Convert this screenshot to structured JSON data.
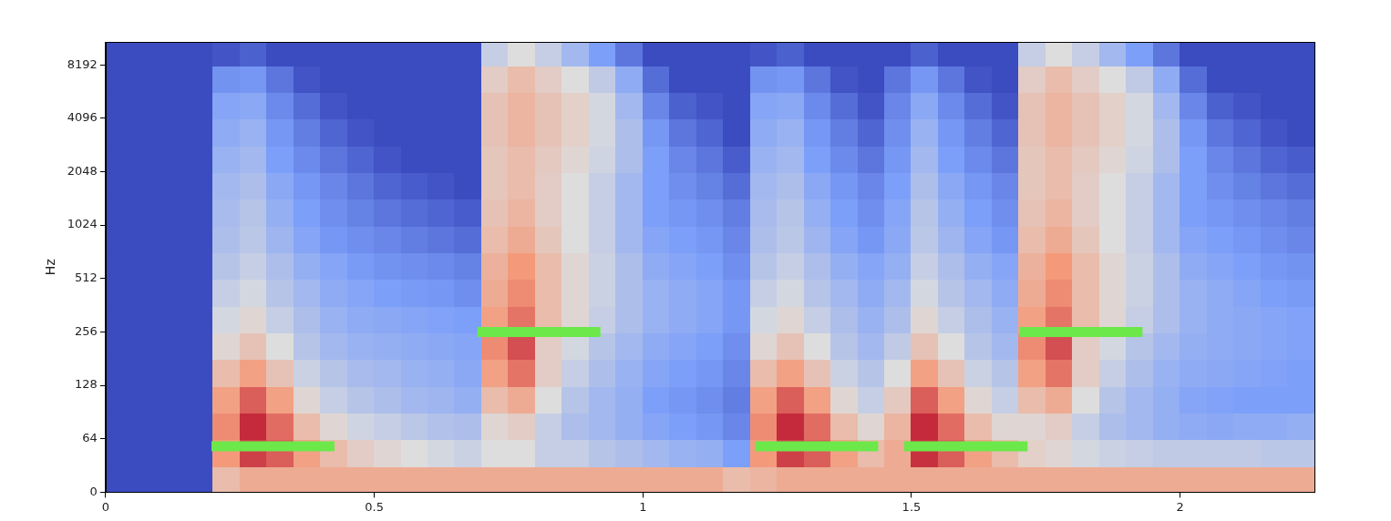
{
  "chart_data": {
    "type": "heatmap",
    "y_label": "Hz",
    "log": "y",
    "grid": false,
    "xlim": [
      0,
      2.25
    ],
    "xticks": [
      0,
      0.5,
      1,
      1.5,
      2
    ],
    "ylim": [
      0,
      11025
    ],
    "yticks": [
      0,
      64,
      128,
      256,
      512,
      1024,
      2048,
      4096,
      8192
    ],
    "cells": {
      "x_edges": [
        0,
        0.05,
        0.1,
        0.15,
        0.2,
        0.25,
        0.3,
        0.35,
        0.4,
        0.45,
        0.5,
        0.55,
        0.6,
        0.65,
        0.7,
        0.75,
        0.8,
        0.85,
        0.9,
        0.95,
        1,
        1.05,
        1.1,
        1.15,
        1.2,
        1.25,
        1.3,
        1.35,
        1.4,
        1.45,
        1.5,
        1.55,
        1.6,
        1.65,
        1.7,
        1.75,
        1.8,
        1.85,
        1.9,
        1.95,
        2,
        2.05,
        2.1,
        2.15,
        2.2,
        2.25
      ],
      "y_edges": [
        0,
        32,
        64,
        90.5,
        128,
        181,
        256,
        362,
        512,
        724,
        1024,
        1448,
        2048,
        2896,
        4096,
        5793,
        8192,
        11025
      ],
      "value_range": [
        -80,
        0
      ],
      "values": [
        [
          -80,
          -80,
          -80,
          -80,
          -80,
          -80,
          -80,
          -80,
          -80,
          -80,
          -80,
          -80,
          -80,
          -80,
          -80,
          -80,
          -80
        ],
        [
          -80,
          -80,
          -80,
          -80,
          -80,
          -80,
          -80,
          -80,
          -80,
          -80,
          -80,
          -80,
          -80,
          -80,
          -80,
          -80,
          -80
        ],
        [
          -80,
          -80,
          -80,
          -80,
          -80,
          -80,
          -80,
          -80,
          -80,
          -80,
          -80,
          -80,
          -80,
          -80,
          -80,
          -80,
          -80
        ],
        [
          -80,
          -80,
          -80,
          -80,
          -80,
          -80,
          -80,
          -80,
          -80,
          -80,
          -80,
          -80,
          -80,
          -80,
          -80,
          -80,
          -80
        ],
        [
          -30,
          -20,
          -18,
          -22,
          -30,
          -38,
          -42,
          -45,
          -48,
          -50,
          -51,
          -52,
          -54,
          -56,
          -58,
          -63,
          -78
        ],
        [
          -25,
          -8,
          -5,
          -12,
          -22,
          -32,
          -38,
          -42,
          -45,
          -47,
          -48,
          -50,
          -52,
          -54,
          -57,
          -62,
          -75
        ],
        [
          -25,
          -12,
          -14,
          -22,
          -32,
          -40,
          -45,
          -48,
          -50,
          -53,
          -55,
          -57,
          -60,
          -62,
          -65,
          -70,
          -80
        ],
        [
          -25,
          -22,
          -30,
          -38,
          -44,
          -48,
          -50,
          -52,
          -55,
          -58,
          -60,
          -62,
          -65,
          -68,
          -72,
          -78,
          -80
        ],
        [
          -25,
          -30,
          -38,
          -45,
          -48,
          -52,
          -54,
          -56,
          -58,
          -62,
          -64,
          -66,
          -70,
          -74,
          -78,
          -80,
          -80
        ],
        [
          -25,
          -35,
          -43,
          -48,
          -51,
          -54,
          -56,
          -58,
          -61,
          -64,
          -67,
          -70,
          -74,
          -78,
          -80,
          -80,
          -80
        ],
        [
          -25,
          -38,
          -45,
          -50,
          -52,
          -55,
          -57,
          -60,
          -63,
          -66,
          -70,
          -74,
          -78,
          -80,
          -80,
          -80,
          -80
        ],
        [
          -25,
          -40,
          -47,
          -52,
          -54,
          -56,
          -58,
          -61,
          -64,
          -68,
          -72,
          -76,
          -80,
          -80,
          -80,
          -80,
          -80
        ],
        [
          -25,
          -42,
          -49,
          -53,
          -55,
          -57,
          -59,
          -62,
          -65,
          -70,
          -74,
          -78,
          -80,
          -80,
          -80,
          -80,
          -80
        ],
        [
          -25,
          -44,
          -50,
          -55,
          -57,
          -58,
          -60,
          -64,
          -67,
          -72,
          -76,
          -80,
          -80,
          -80,
          -80,
          -80,
          -80
        ],
        [
          -25,
          -40,
          -38,
          -30,
          -22,
          -18,
          -22,
          -25,
          -27,
          -30,
          -32,
          -33,
          -33,
          -32,
          -32,
          -35,
          -45
        ],
        [
          -25,
          -40,
          -35,
          -25,
          -15,
          -10,
          -15,
          -18,
          -20,
          -25,
          -28,
          -30,
          -30,
          -28,
          -28,
          -30,
          -40
        ],
        [
          -25,
          -45,
          -45,
          -40,
          -35,
          -35,
          -30,
          -30,
          -30,
          -33,
          -35,
          -35,
          -34,
          -32,
          -32,
          -35,
          -45
        ],
        [
          -25,
          -45,
          -50,
          -48,
          -45,
          -42,
          -38,
          -38,
          -38,
          -40,
          -40,
          -40,
          -38,
          -36,
          -36,
          -40,
          -52
        ],
        [
          -25,
          -48,
          -52,
          -52,
          -50,
          -48,
          -45,
          -44,
          -44,
          -45,
          -45,
          -45,
          -43,
          -42,
          -42,
          -46,
          -60
        ],
        [
          -25,
          -50,
          -55,
          -55,
          -54,
          -52,
          -50,
          -50,
          -50,
          -52,
          -52,
          -52,
          -50,
          -50,
          -52,
          -56,
          -70
        ],
        [
          -25,
          -52,
          -58,
          -60,
          -58,
          -56,
          -54,
          -54,
          -56,
          -58,
          -60,
          -60,
          -60,
          -62,
          -66,
          -72,
          -80
        ],
        [
          -25,
          -54,
          -60,
          -62,
          -60,
          -58,
          -56,
          -56,
          -58,
          -60,
          -62,
          -64,
          -66,
          -70,
          -75,
          -80,
          -80
        ],
        [
          -25,
          -55,
          -62,
          -64,
          -62,
          -60,
          -58,
          -58,
          -60,
          -62,
          -64,
          -67,
          -70,
          -74,
          -78,
          -80,
          -80
        ],
        [
          -30,
          -60,
          -66,
          -68,
          -66,
          -64,
          -62,
          -62,
          -64,
          -66,
          -68,
          -72,
          -76,
          -80,
          -80,
          -80,
          -80
        ],
        [
          -28,
          -20,
          -18,
          -22,
          -30,
          -38,
          -42,
          -45,
          -48,
          -50,
          -51,
          -52,
          -54,
          -56,
          -58,
          -63,
          -78
        ],
        [
          -25,
          -8,
          -5,
          -12,
          -22,
          -32,
          -38,
          -42,
          -45,
          -47,
          -48,
          -50,
          -52,
          -54,
          -57,
          -62,
          -75
        ],
        [
          -25,
          -12,
          -14,
          -22,
          -32,
          -40,
          -45,
          -48,
          -50,
          -53,
          -55,
          -57,
          -60,
          -62,
          -65,
          -70,
          -80
        ],
        [
          -25,
          -22,
          -30,
          -38,
          -44,
          -48,
          -50,
          -52,
          -55,
          -58,
          -60,
          -62,
          -65,
          -68,
          -72,
          -78,
          -80
        ],
        [
          -25,
          -30,
          -38,
          -45,
          -48,
          -52,
          -54,
          -56,
          -58,
          -62,
          -64,
          -66,
          -70,
          -74,
          -78,
          -80,
          -80
        ],
        [
          -25,
          -25,
          -28,
          -34,
          -40,
          -46,
          -50,
          -52,
          -55,
          -57,
          -58,
          -60,
          -62,
          -64,
          -66,
          -70,
          -80
        ],
        [
          -25,
          -6,
          -5,
          -12,
          -22,
          -32,
          -38,
          -42,
          -45,
          -47,
          -48,
          -50,
          -52,
          -54,
          -57,
          -62,
          -75
        ],
        [
          -25,
          -12,
          -14,
          -22,
          -32,
          -40,
          -45,
          -48,
          -50,
          -53,
          -55,
          -57,
          -60,
          -62,
          -65,
          -70,
          -80
        ],
        [
          -25,
          -22,
          -30,
          -38,
          -44,
          -48,
          -50,
          -52,
          -55,
          -58,
          -60,
          -62,
          -65,
          -68,
          -72,
          -78,
          -80
        ],
        [
          -25,
          -30,
          -38,
          -45,
          -48,
          -52,
          -54,
          -56,
          -58,
          -62,
          -64,
          -66,
          -70,
          -74,
          -78,
          -80,
          -80
        ],
        [
          -25,
          -36,
          -38,
          -30,
          -22,
          -18,
          -22,
          -25,
          -27,
          -30,
          -32,
          -33,
          -33,
          -32,
          -32,
          -35,
          -45
        ],
        [
          -25,
          -38,
          -35,
          -25,
          -15,
          -10,
          -15,
          -18,
          -20,
          -25,
          -28,
          -30,
          -30,
          -28,
          -28,
          -30,
          -40
        ],
        [
          -25,
          -42,
          -45,
          -40,
          -35,
          -35,
          -30,
          -30,
          -30,
          -33,
          -35,
          -35,
          -34,
          -32,
          -32,
          -35,
          -45
        ],
        [
          -25,
          -44,
          -50,
          -48,
          -45,
          -42,
          -38,
          -38,
          -38,
          -40,
          -40,
          -40,
          -38,
          -36,
          -36,
          -40,
          -52
        ],
        [
          -25,
          -45,
          -52,
          -52,
          -50,
          -48,
          -45,
          -44,
          -44,
          -45,
          -45,
          -45,
          -43,
          -42,
          -42,
          -46,
          -60
        ],
        [
          -25,
          -46,
          -55,
          -55,
          -54,
          -52,
          -50,
          -50,
          -50,
          -52,
          -52,
          -52,
          -50,
          -50,
          -52,
          -56,
          -70
        ],
        [
          -25,
          -46,
          -56,
          -58,
          -56,
          -55,
          -54,
          -54,
          -56,
          -58,
          -60,
          -60,
          -60,
          -62,
          -66,
          -72,
          -80
        ],
        [
          -25,
          -46,
          -57,
          -59,
          -57,
          -56,
          -56,
          -56,
          -58,
          -60,
          -62,
          -64,
          -66,
          -70,
          -75,
          -80,
          -80
        ],
        [
          -25,
          -46,
          -56,
          -60,
          -58,
          -57,
          -57,
          -58,
          -60,
          -62,
          -64,
          -67,
          -70,
          -74,
          -78,
          -80,
          -80
        ],
        [
          -25,
          -47,
          -56,
          -60,
          -59,
          -58,
          -58,
          -60,
          -62,
          -64,
          -66,
          -70,
          -74,
          -78,
          -80,
          -80,
          -80
        ],
        [
          -25,
          -47,
          -55,
          -60,
          -60,
          -59,
          -59,
          -61,
          -63,
          -66,
          -68,
          -72,
          -76,
          -80,
          -80,
          -80,
          -80
        ]
      ]
    },
    "segments": {
      "color": "#6ce84a",
      "items": [
        {
          "x": [
            0.197,
            0.426
          ],
          "y": 55
        },
        {
          "x": [
            0.692,
            0.921
          ],
          "y": 256
        },
        {
          "x": [
            1.209,
            1.438
          ],
          "y": 55
        },
        {
          "x": [
            1.486,
            1.716
          ],
          "y": 55
        },
        {
          "x": [
            1.701,
            1.93
          ],
          "y": 256
        }
      ]
    }
  }
}
